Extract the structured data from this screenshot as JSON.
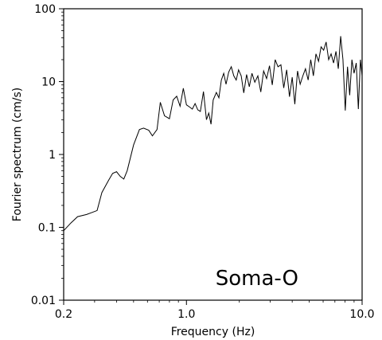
{
  "chart_data": {
    "type": "line",
    "xlabel": "Frequency (Hz)",
    "ylabel": "Fourier spectrum (cm/s)",
    "x_scale": "log",
    "y_scale": "log",
    "xlim": [
      0.2,
      10.0
    ],
    "ylim": [
      0.01,
      100
    ],
    "x_ticks": [
      {
        "value": 0.2,
        "label": "0.2"
      },
      {
        "value": 1.0,
        "label": "1.0"
      },
      {
        "value": 10.0,
        "label": "10.0"
      }
    ],
    "y_ticks": [
      {
        "value": 0.01,
        "label": "0.01"
      },
      {
        "value": 0.1,
        "label": "0.1"
      },
      {
        "value": 1,
        "label": "1"
      },
      {
        "value": 10,
        "label": "10"
      },
      {
        "value": 100,
        "label": "100"
      }
    ],
    "annotation": "Soma-O",
    "grid": false,
    "line_color": "#000000",
    "series": [
      {
        "x": [
          0.2,
          0.22,
          0.24,
          0.27,
          0.29,
          0.31,
          0.33,
          0.36,
          0.38,
          0.4,
          0.42,
          0.44,
          0.46,
          0.5,
          0.54,
          0.57,
          0.61,
          0.64,
          0.68,
          0.71,
          0.75,
          0.8,
          0.84,
          0.88,
          0.92,
          0.96,
          1.0,
          1.04,
          1.08,
          1.12,
          1.16,
          1.2,
          1.25,
          1.3,
          1.34,
          1.38,
          1.42,
          1.48,
          1.53,
          1.58,
          1.63,
          1.68,
          1.74,
          1.8,
          1.86,
          1.92,
          1.98,
          2.05,
          2.12,
          2.2,
          2.28,
          2.36,
          2.45,
          2.55,
          2.65,
          2.75,
          2.86,
          2.97,
          3.08,
          3.2,
          3.32,
          3.45,
          3.58,
          3.72,
          3.86,
          4.0,
          4.14,
          4.29,
          4.44,
          4.6,
          4.76,
          4.93,
          5.1,
          5.28,
          5.46,
          5.65,
          5.84,
          6.04,
          6.24,
          6.45,
          6.66,
          6.88,
          7.1,
          7.32,
          7.55,
          7.78,
          8.02,
          8.26,
          8.5,
          8.75,
          9.0,
          9.26,
          9.52,
          9.78,
          10.0
        ],
        "y": [
          0.09,
          0.115,
          0.14,
          0.15,
          0.16,
          0.17,
          0.3,
          0.44,
          0.55,
          0.58,
          0.5,
          0.46,
          0.6,
          1.35,
          2.2,
          2.3,
          2.15,
          1.8,
          2.2,
          5.2,
          3.4,
          3.1,
          5.6,
          6.3,
          4.6,
          8.1,
          4.8,
          4.5,
          4.2,
          5.0,
          4.1,
          3.9,
          7.3,
          3.0,
          3.7,
          2.6,
          5.6,
          7.1,
          6.0,
          10.5,
          13.0,
          9.2,
          13.5,
          16.0,
          12.0,
          10.5,
          14.5,
          12.0,
          7.0,
          12.5,
          8.5,
          13.0,
          9.8,
          12.0,
          7.2,
          14.0,
          11.0,
          16.5,
          9.0,
          20.0,
          16.0,
          17.0,
          8.2,
          14.5,
          6.2,
          11.5,
          4.9,
          14.0,
          9.2,
          12.0,
          15.0,
          10.5,
          20.0,
          12.0,
          24.0,
          19.0,
          30.0,
          27.0,
          35.0,
          20.0,
          24.0,
          18.0,
          26.0,
          15.0,
          42.0,
          20.0,
          4.0,
          16.0,
          6.5,
          20.0,
          13.0,
          18.0,
          4.2,
          20.0,
          12.0
        ]
      }
    ]
  }
}
